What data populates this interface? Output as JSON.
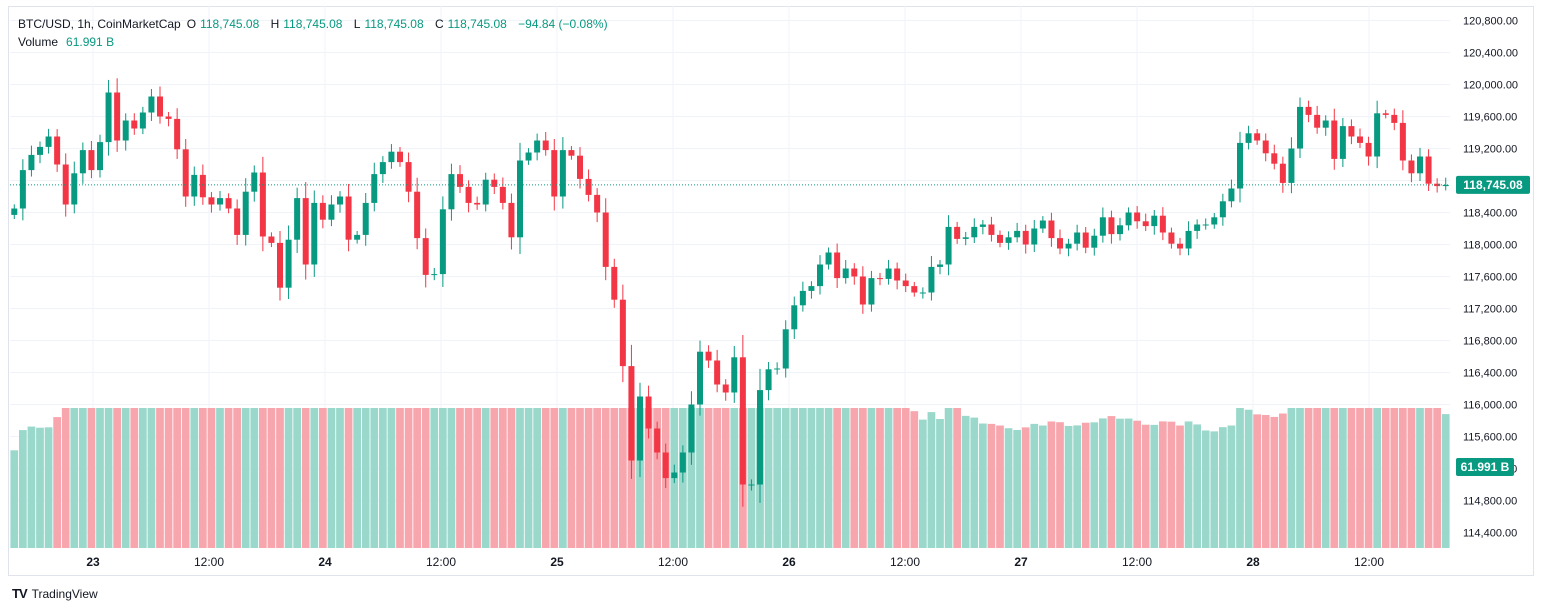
{
  "legend": {
    "symbol": "BTC/USD, 1h, CoinMarketCap",
    "o_label": "O",
    "o_value": "118,745.08",
    "h_label": "H",
    "h_value": "118,745.08",
    "l_label": "L",
    "l_value": "118,745.08",
    "c_label": "C",
    "c_value": "118,745.08",
    "change": "−94.84 (−0.08%)",
    "volume_label": "Volume",
    "volume_value": "61.991 B"
  },
  "price_tag": "118,745.08",
  "volume_tag": "61.991 B",
  "branding": {
    "logo_mark": "TV",
    "name": "TradingView"
  },
  "colors": {
    "up": "#089981",
    "down": "#f23645",
    "vol_up": "#99d8cb",
    "vol_down": "#f7a6ad",
    "grid": "#f0f3fa"
  },
  "chart_data": {
    "type": "candlestick",
    "symbol": "BTC/USD",
    "interval": "1h",
    "y_ticks": [
      "120,800.00",
      "120,400.00",
      "120,000.00",
      "119,600.00",
      "119,200.00",
      "118,800.00",
      "118,400.00",
      "118,000.00",
      "117,600.00",
      "117,200.00",
      "116,800.00",
      "116,400.00",
      "116,000.00",
      "115,600.00",
      "115,200.00",
      "114,800.00",
      "114,400.00"
    ],
    "x_ticks": [
      "23",
      "12:00",
      "24",
      "12:00",
      "25",
      "12:00",
      "26",
      "12:00",
      "27",
      "12:00",
      "28",
      "12:00"
    ],
    "ylim": [
      114200,
      121000
    ],
    "last_price": 118745.08,
    "closes": [
      118450,
      118930,
      119120,
      119220,
      119350,
      119000,
      118500,
      118890,
      119180,
      118930,
      119280,
      119900,
      119300,
      119550,
      119450,
      119650,
      119850,
      119600,
      119570,
      119190,
      118600,
      118870,
      118590,
      118500,
      118580,
      118450,
      118120,
      118660,
      118900,
      118100,
      118020,
      117460,
      118060,
      118580,
      117750,
      118520,
      118310,
      118500,
      118600,
      118060,
      118120,
      118520,
      118880,
      119030,
      119160,
      119030,
      118660,
      118080,
      117620,
      117630,
      118440,
      118880,
      118720,
      118520,
      118500,
      118810,
      118720,
      118520,
      118090,
      119050,
      119150,
      119300,
      119180,
      118600,
      119180,
      119110,
      118820,
      118620,
      118400,
      117720,
      117310,
      116480,
      115300,
      116100,
      115700,
      115400,
      115080,
      115150,
      115400,
      116000,
      116660,
      116550,
      116250,
      116150,
      116590,
      115000,
      115000,
      116180,
      116440,
      116450,
      116940,
      117240,
      117420,
      117480,
      117750,
      117900,
      117580,
      117700,
      117600,
      117250,
      117580,
      117570,
      117700,
      117550,
      117480,
      117400,
      117400,
      117720,
      117750,
      118220,
      118070,
      118090,
      118220,
      118250,
      118120,
      118020,
      118090,
      118170,
      118000,
      118200,
      118300,
      118080,
      117950,
      118010,
      118150,
      117960,
      118110,
      118340,
      118130,
      118240,
      118400,
      118290,
      118230,
      118360,
      118150,
      118010,
      117950,
      118170,
      118250,
      118250,
      118340,
      118540,
      118700,
      119270,
      119390,
      119300,
      119140,
      119010,
      118770,
      119200,
      119720,
      119620,
      119460,
      119550,
      119070,
      119480,
      119350,
      119270,
      119100,
      119640,
      119620,
      119520,
      119050,
      118890,
      119100,
      118760,
      118730,
      118745
    ],
    "volume": {
      "unit": "B",
      "last": 61.991
    }
  }
}
